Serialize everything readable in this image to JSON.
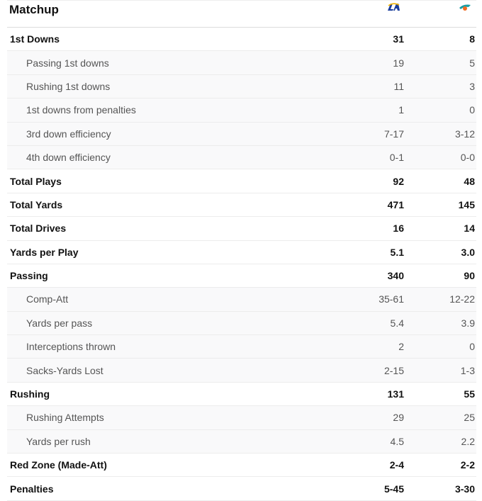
{
  "header": {
    "title": "Matchup",
    "team1_logo": "la-rams-logo",
    "team2_logo": "miami-dolphins-logo",
    "team1_abbr": "LA"
  },
  "rows": [
    {
      "label": "1st Downs",
      "t1": "31",
      "t2": "8",
      "type": "main"
    },
    {
      "label": "Passing 1st downs",
      "t1": "19",
      "t2": "5",
      "type": "sub"
    },
    {
      "label": "Rushing 1st downs",
      "t1": "11",
      "t2": "3",
      "type": "sub"
    },
    {
      "label": "1st downs from penalties",
      "t1": "1",
      "t2": "0",
      "type": "sub"
    },
    {
      "label": "3rd down efficiency",
      "t1": "7-17",
      "t2": "3-12",
      "type": "sub"
    },
    {
      "label": "4th down efficiency",
      "t1": "0-1",
      "t2": "0-0",
      "type": "sub"
    },
    {
      "label": "Total Plays",
      "t1": "92",
      "t2": "48",
      "type": "main"
    },
    {
      "label": "Total Yards",
      "t1": "471",
      "t2": "145",
      "type": "main"
    },
    {
      "label": "Total Drives",
      "t1": "16",
      "t2": "14",
      "type": "main"
    },
    {
      "label": "Yards per Play",
      "t1": "5.1",
      "t2": "3.0",
      "type": "main"
    },
    {
      "label": "Passing",
      "t1": "340",
      "t2": "90",
      "type": "main"
    },
    {
      "label": "Comp-Att",
      "t1": "35-61",
      "t2": "12-22",
      "type": "sub"
    },
    {
      "label": "Yards per pass",
      "t1": "5.4",
      "t2": "3.9",
      "type": "sub"
    },
    {
      "label": "Interceptions thrown",
      "t1": "2",
      "t2": "0",
      "type": "sub"
    },
    {
      "label": "Sacks-Yards Lost",
      "t1": "2-15",
      "t2": "1-3",
      "type": "sub"
    },
    {
      "label": "Rushing",
      "t1": "131",
      "t2": "55",
      "type": "main"
    },
    {
      "label": "Rushing Attempts",
      "t1": "29",
      "t2": "25",
      "type": "sub"
    },
    {
      "label": "Yards per rush",
      "t1": "4.5",
      "t2": "2.2",
      "type": "sub"
    },
    {
      "label": "Red Zone (Made-Att)",
      "t1": "2-4",
      "t2": "2-2",
      "type": "main"
    },
    {
      "label": "Penalties",
      "t1": "5-45",
      "t2": "3-30",
      "type": "main"
    }
  ]
}
